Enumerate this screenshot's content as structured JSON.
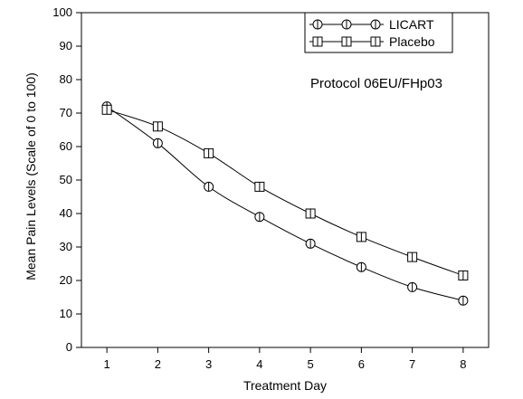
{
  "chart_data": {
    "type": "line",
    "title": "",
    "xlabel": "Treatment Day",
    "ylabel": "Mean Pain Levels (Scale of 0 to 100)",
    "x": [
      1,
      2,
      3,
      4,
      5,
      6,
      7,
      8
    ],
    "xlim": [
      0.5,
      8.5
    ],
    "ylim": [
      0,
      100
    ],
    "yticks": [
      0,
      10,
      20,
      30,
      40,
      50,
      60,
      70,
      80,
      90,
      100
    ],
    "grid": false,
    "legend_position": "top-right",
    "annotation": "Protocol 06EU/FHp03",
    "series": [
      {
        "name": "LICART",
        "marker": "circle",
        "values": [
          72,
          61,
          48,
          39,
          31,
          24,
          18,
          14
        ]
      },
      {
        "name": "Placebo",
        "marker": "square",
        "values": [
          71,
          66,
          58,
          48,
          40,
          33,
          27,
          21.5
        ]
      }
    ]
  }
}
